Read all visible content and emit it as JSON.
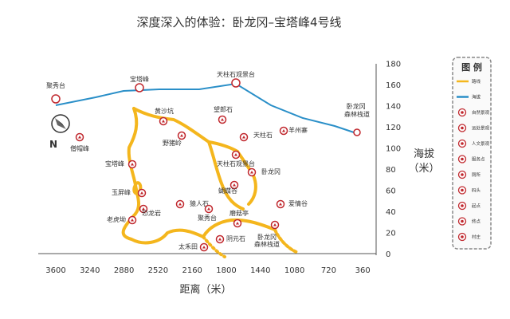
{
  "title": "深度深入的体验：卧龙冈–宝塔峰4号线",
  "colors": {
    "route": "#f4b61d",
    "elevation": "#2a8fc8",
    "poi": "#c0272d",
    "legend_border": "#888888"
  },
  "x_axis": {
    "label": "距离（米）",
    "ticks": [
      "3600",
      "3240",
      "2880",
      "2520",
      "2160",
      "1800",
      "1440",
      "1080",
      "720",
      "360"
    ]
  },
  "y_axis": {
    "label_line1": "海拔",
    "label_line2": "（米）",
    "ticks": [
      "0",
      "20",
      "40",
      "60",
      "80",
      "100",
      "120",
      "140",
      "160",
      "180"
    ]
  },
  "elevation_labels": [
    "聚秀台",
    "宝塔峰",
    "天柱石观景台",
    "卧龙冈\n森林栈道"
  ],
  "compass": {
    "north": "N"
  },
  "pois": [
    {
      "label": "黄沙坑"
    },
    {
      "label": "望郎石"
    },
    {
      "label": "僧帽峰"
    },
    {
      "label": "天柱石"
    },
    {
      "label": "羊州寨"
    },
    {
      "label": "野猪岭"
    },
    {
      "label": "天柱石观景台"
    },
    {
      "label": "宝塔峰"
    },
    {
      "label": "卧龙冈"
    },
    {
      "label": "玉屏峰"
    },
    {
      "label": "蝴蝶谷"
    },
    {
      "label": "猿人石"
    },
    {
      "label": "恐龙岩"
    },
    {
      "label": "爱情谷"
    },
    {
      "label": "老虎坳"
    },
    {
      "label": "聚秀台"
    },
    {
      "label": "磨菇亭"
    },
    {
      "label": "阴元石"
    },
    {
      "label": "太禾田"
    },
    {
      "label": "卧龙冈\n森林栈道"
    }
  ],
  "legend": {
    "title": "图 例",
    "items": [
      "路线",
      "海拔",
      "自然景观",
      "远处景观",
      "人文景观",
      "服务点",
      "厕所",
      "码头",
      "起点",
      "终点",
      "村庄"
    ]
  }
}
